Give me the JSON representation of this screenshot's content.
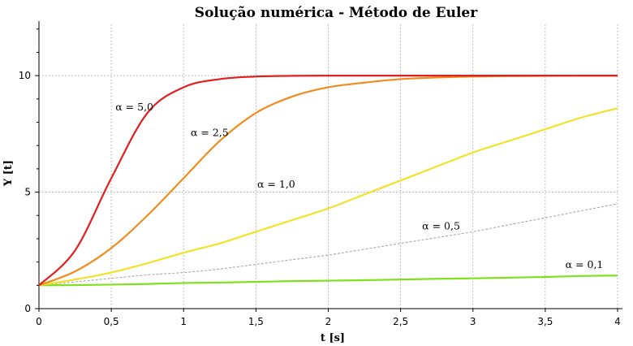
{
  "chart_data": {
    "type": "line",
    "title": "Solução numérica - Método de Euler",
    "xlabel": "t [s]",
    "ylabel": "Y [t]",
    "xlim": [
      0,
      4
    ],
    "ylim": [
      0,
      12.2
    ],
    "xticks": [
      "0",
      "0,5",
      "1",
      "1,5",
      "2",
      "2,5",
      "3",
      "3,5",
      "4"
    ],
    "yticks": [
      "0",
      "5",
      "10"
    ],
    "grid": true,
    "x": [
      0,
      0.25,
      0.5,
      0.75,
      1,
      1.25,
      1.5,
      1.75,
      2,
      2.25,
      2.5,
      2.75,
      3,
      3.25,
      3.5,
      3.75,
      4
    ],
    "series": [
      {
        "name": "α = 5,0",
        "color": "#e02020",
        "values": [
          1.0,
          2.5,
          5.6,
          8.4,
          9.5,
          9.85,
          9.96,
          9.99,
          10.0,
          10.0,
          10.0,
          10.0,
          10.0,
          10.0,
          10.0,
          10.0,
          10.0
        ]
      },
      {
        "name": "α = 2,5",
        "color": "#f08c1e",
        "values": [
          1.0,
          1.6,
          2.6,
          4.0,
          5.6,
          7.2,
          8.4,
          9.1,
          9.5,
          9.7,
          9.85,
          9.92,
          9.96,
          9.98,
          9.99,
          10.0,
          10.0
        ]
      },
      {
        "name": "α = 1,0",
        "color": "#f2e22a",
        "values": [
          1.0,
          1.25,
          1.55,
          1.95,
          2.4,
          2.8,
          3.3,
          3.8,
          4.3,
          4.9,
          5.5,
          6.1,
          6.7,
          7.2,
          7.7,
          8.2,
          8.6
        ]
      },
      {
        "name": "α = 0,5",
        "color": "#a8a8a8",
        "dashed": true,
        "values": [
          1.0,
          1.15,
          1.3,
          1.45,
          1.55,
          1.7,
          1.9,
          2.1,
          2.3,
          2.55,
          2.8,
          3.05,
          3.3,
          3.6,
          3.9,
          4.2,
          4.5
        ]
      },
      {
        "name": "α = 0,1",
        "color": "#80e020",
        "values": [
          1.0,
          1.01,
          1.03,
          1.06,
          1.1,
          1.12,
          1.15,
          1.18,
          1.2,
          1.22,
          1.25,
          1.28,
          1.3,
          1.33,
          1.36,
          1.4,
          1.42
        ]
      }
    ],
    "labels": [
      {
        "text": "α = 5,0",
        "x": 0.66,
        "y": 8.5
      },
      {
        "text": "α = 2,5",
        "x": 1.18,
        "y": 7.4
      },
      {
        "text": "α = 1,0",
        "x": 1.64,
        "y": 5.2
      },
      {
        "text": "α = 0,5",
        "x": 2.78,
        "y": 3.4
      },
      {
        "text": "α = 0,1",
        "x": 3.77,
        "y": 1.75
      }
    ]
  }
}
